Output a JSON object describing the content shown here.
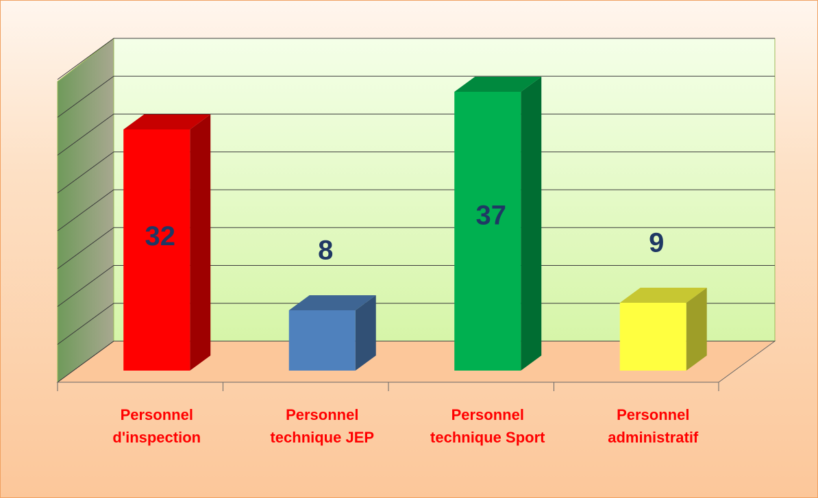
{
  "chart_data": {
    "type": "bar3d",
    "categories": [
      "Personnel d'inspection",
      "Personnel technique JEP",
      "Personnel technique Sport",
      "Personnel administratif"
    ],
    "values": [
      32,
      8,
      37,
      9
    ],
    "colors": [
      "#ff0000",
      "#4f81bd",
      "#00b050",
      "#ffff40"
    ],
    "ylim": [
      0,
      40
    ],
    "yticks": [
      0,
      5,
      10,
      15,
      20,
      25,
      30,
      35,
      40
    ],
    "grid": true
  }
}
